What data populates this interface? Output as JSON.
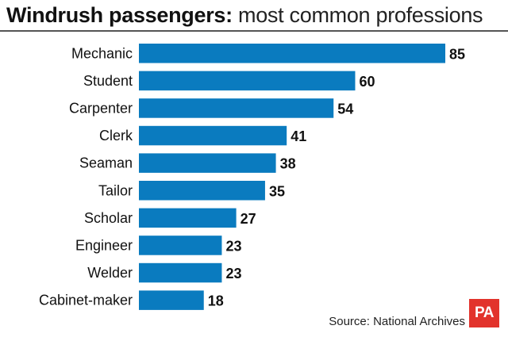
{
  "title": {
    "bold": "Windrush passengers:",
    "light": " most common professions"
  },
  "source": "Source: National Archives",
  "logo": "PA",
  "colors": {
    "bar": "#0a7bbf",
    "logo": "#e2332c",
    "text": "#111111"
  },
  "chart_data": {
    "type": "bar",
    "orientation": "horizontal",
    "title": "Windrush passengers: most common professions",
    "categories": [
      "Mechanic",
      "Student",
      "Carpenter",
      "Clerk",
      "Seaman",
      "Tailor",
      "Scholar",
      "Engineer",
      "Welder",
      "Cabinet-maker"
    ],
    "values": [
      85,
      60,
      54,
      41,
      38,
      35,
      27,
      23,
      23,
      18
    ],
    "xlim": [
      0,
      85
    ],
    "grid": false,
    "legend": "none"
  }
}
